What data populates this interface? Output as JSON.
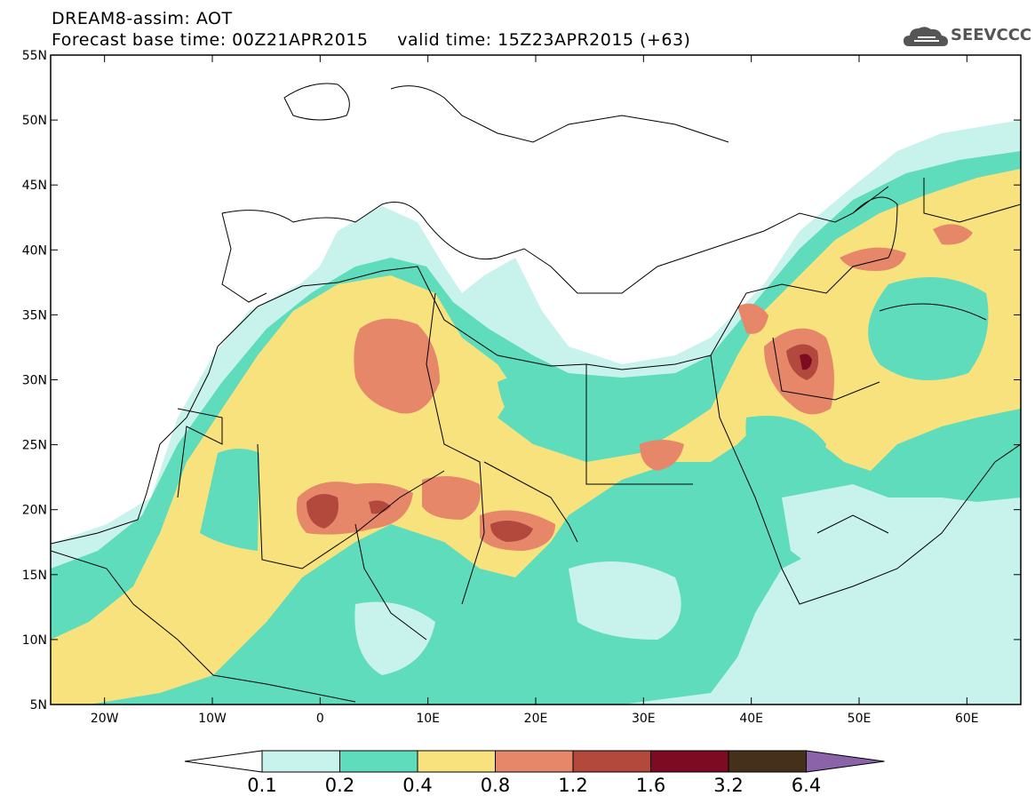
{
  "header": {
    "line1": "DREAM8-assim: AOT",
    "line2": "Forecast base time: 00Z21APR2015     valid time: 15Z23APR2015 (+63)",
    "logo_text": "SEEVCCC"
  },
  "map": {
    "lon_range": [
      -25,
      65
    ],
    "lat_range": [
      5,
      55
    ],
    "lat_ticks": [
      "5N",
      "10N",
      "15N",
      "20N",
      "25N",
      "30N",
      "35N",
      "40N",
      "45N",
      "50N",
      "55N"
    ],
    "lon_ticks": [
      "20W",
      "10W",
      "0",
      "10E",
      "20E",
      "30E",
      "40E",
      "50E",
      "60E"
    ]
  },
  "colorbar": {
    "labels": [
      "0.1",
      "0.2",
      "0.4",
      "0.8",
      "1.2",
      "1.6",
      "3.2",
      "6.4"
    ],
    "colors": [
      "#ffffff",
      "#c8f2ec",
      "#5fdcbc",
      "#f7e27e",
      "#e6876a",
      "#b2493c",
      "#7d0c22",
      "#45301c",
      "#8a63a8"
    ]
  },
  "palette": {
    "c1": "#c8f2ec",
    "c2": "#5fdcbc",
    "c3": "#f7e27e",
    "c4": "#e6876a",
    "c5": "#b2493c",
    "c6": "#7d0c22"
  }
}
